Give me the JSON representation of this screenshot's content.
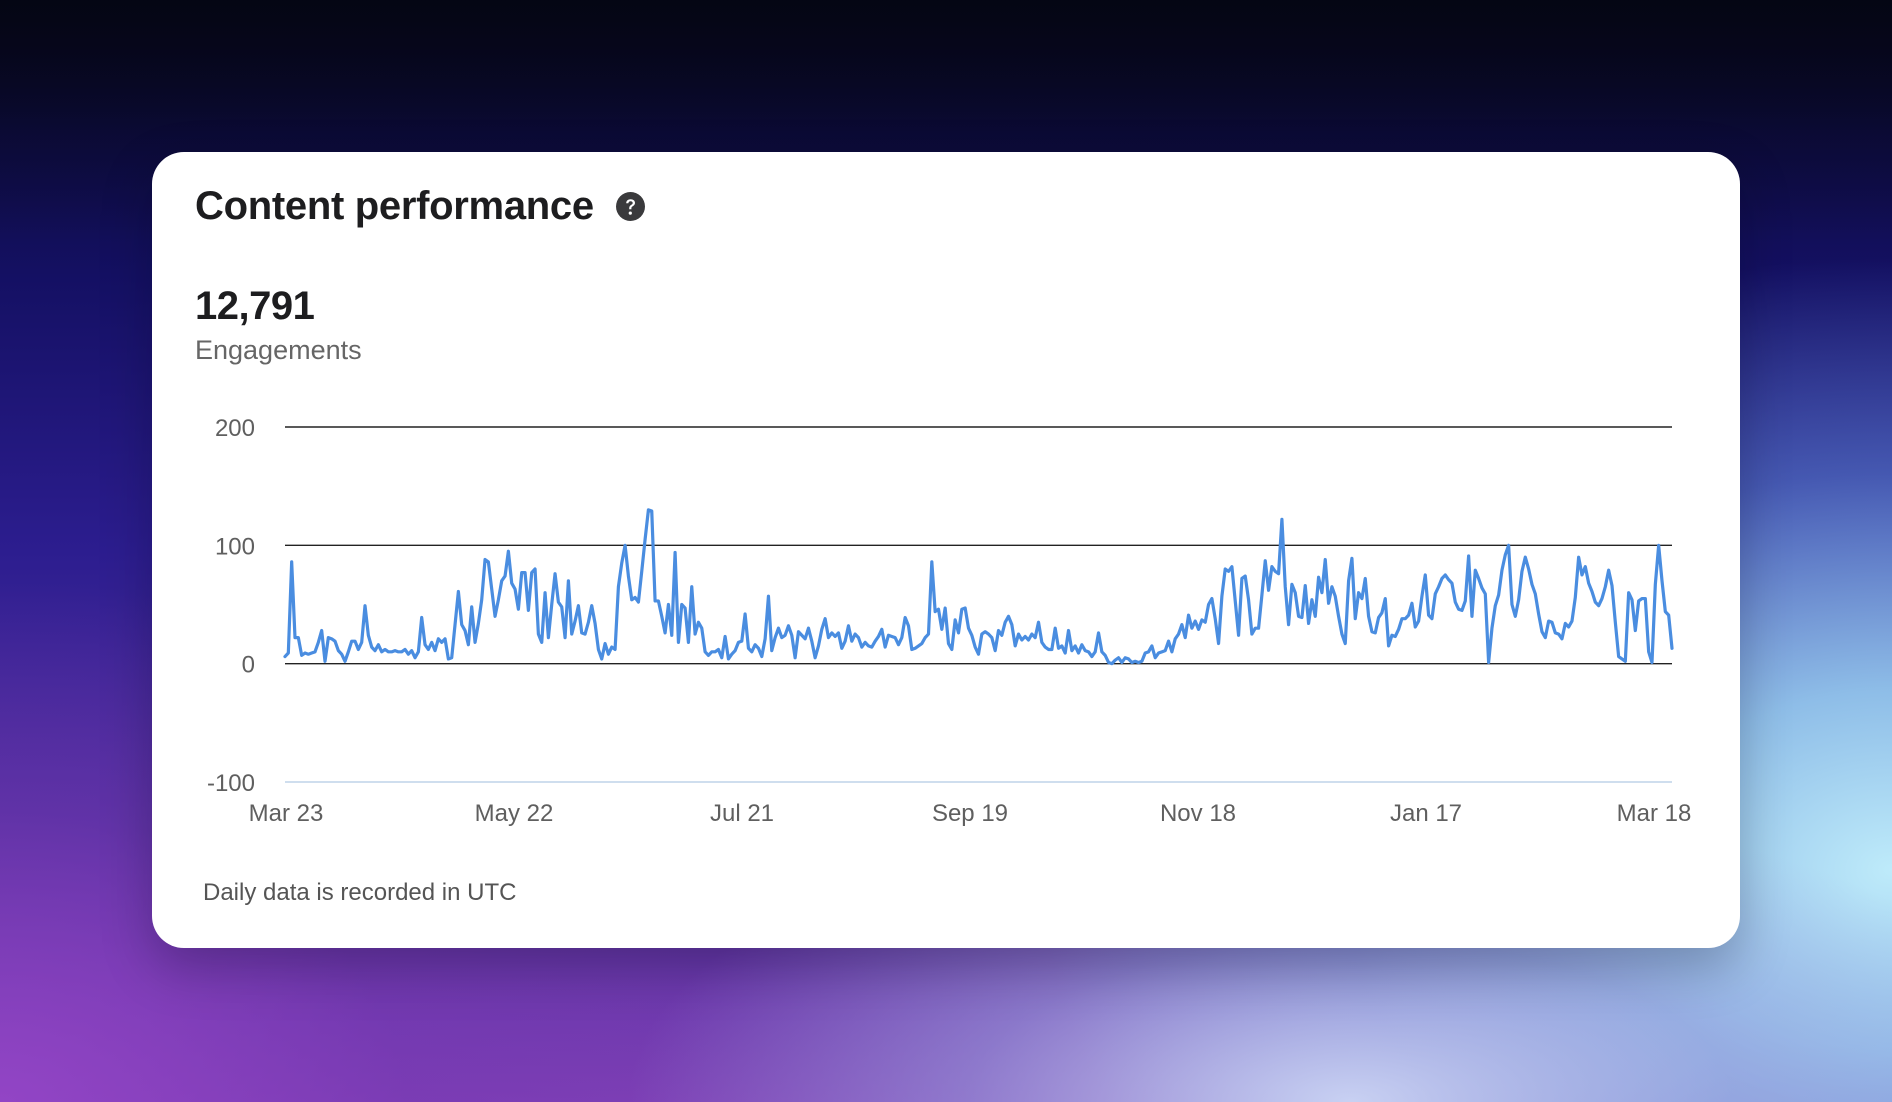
{
  "card": {
    "title": "Content performance",
    "help_icon": "question-circle-icon",
    "metric_value": "12,791",
    "metric_label": "Engagements",
    "footnote": "Daily data is recorded in UTC"
  },
  "colors": {
    "line": "#4a8de0",
    "grid": "#222222",
    "bottom_grid": "#bfd4e8"
  },
  "chart_data": {
    "type": "line",
    "xlabel": "",
    "ylabel": "",
    "ylim": [
      -100,
      200
    ],
    "yticks": [
      200,
      100,
      0,
      -100
    ],
    "ytick_labels": [
      "200",
      "100",
      "0",
      "-100"
    ],
    "xtick_labels": [
      "Mar 23",
      "May 22",
      "Jul 21",
      "Sep 19",
      "Nov 18",
      "Jan 17",
      "Mar 18"
    ],
    "grid": true,
    "legend": "none",
    "series": [
      {
        "values": [
          6,
          9,
          86,
          22,
          22,
          7,
          9,
          8,
          9,
          10,
          18,
          28,
          2,
          22,
          21,
          19,
          11,
          8,
          2,
          10,
          19,
          19,
          12,
          18,
          49,
          24,
          14,
          11,
          16,
          10,
          12,
          10,
          10,
          11,
          10,
          10,
          12,
          8,
          11,
          5,
          10,
          39,
          16,
          12,
          18,
          11,
          21,
          18,
          21,
          4,
          5,
          33,
          61,
          33,
          28,
          16,
          48,
          18,
          34,
          54,
          88,
          86,
          63,
          40,
          54,
          70,
          74,
          95,
          68,
          63,
          46,
          77,
          77,
          45,
          77,
          80,
          25,
          18,
          60,
          22,
          50,
          76,
          52,
          48,
          22,
          70,
          25,
          36,
          49,
          26,
          25,
          35,
          49,
          34,
          12,
          4,
          17,
          8,
          14,
          12,
          65,
          85,
          100,
          74,
          54,
          56,
          52,
          78,
          105,
          130,
          129,
          53,
          53,
          40,
          26,
          50,
          24,
          94,
          18,
          50,
          47,
          18,
          65,
          25,
          35,
          30,
          10,
          7,
          10,
          10,
          12,
          5,
          23,
          4,
          8,
          11,
          18,
          19,
          42,
          13,
          10,
          16,
          13,
          6,
          21,
          57,
          11,
          22,
          30,
          22,
          24,
          32,
          24,
          5,
          27,
          24,
          21,
          30,
          19,
          5,
          15,
          29,
          38,
          22,
          26,
          23,
          26,
          13,
          19,
          32,
          19,
          25,
          22,
          14,
          18,
          15,
          14,
          19,
          23,
          29,
          14,
          24,
          23,
          22,
          16,
          22,
          39,
          32,
          12,
          13,
          15,
          17,
          22,
          25,
          86,
          44,
          46,
          29,
          47,
          17,
          12,
          37,
          26,
          46,
          47,
          30,
          24,
          14,
          8,
          25,
          27,
          25,
          22,
          11,
          28,
          24,
          35,
          40,
          33,
          15,
          25,
          20,
          23,
          20,
          25,
          22,
          35,
          18,
          14,
          12,
          12,
          30,
          13,
          15,
          9,
          28,
          11,
          15,
          9,
          16,
          11,
          10,
          6,
          10,
          26,
          10,
          7,
          1,
          0,
          3,
          5,
          1,
          5,
          4,
          1,
          2,
          1,
          2,
          9,
          10,
          15,
          5,
          9,
          10,
          11,
          19,
          10,
          21,
          25,
          33,
          22,
          41,
          30,
          36,
          29,
          37,
          35,
          50,
          55,
          38,
          17,
          57,
          80,
          78,
          82,
          53,
          24,
          72,
          74,
          54,
          25,
          30,
          30,
          58,
          87,
          62,
          82,
          78,
          76,
          122,
          65,
          33,
          67,
          60,
          40,
          39,
          66,
          34,
          54,
          40,
          73,
          60,
          88,
          51,
          65,
          57,
          40,
          25,
          17,
          70,
          89,
          38,
          60,
          55,
          72,
          40,
          27,
          26,
          39,
          43,
          55,
          15,
          24,
          23,
          29,
          38,
          38,
          41,
          51,
          31,
          36,
          57,
          75,
          41,
          38,
          59,
          65,
          72,
          75,
          71,
          68,
          52,
          46,
          45,
          53,
          91,
          40,
          79,
          72,
          64,
          59,
          1,
          30,
          49,
          58,
          79,
          92,
          100,
          50,
          40,
          54,
          78,
          90,
          80,
          67,
          59,
          42,
          27,
          22,
          36,
          35,
          26,
          25,
          21,
          34,
          31,
          36,
          56,
          90,
          75,
          82,
          68,
          61,
          52,
          49,
          55,
          65,
          79,
          66,
          35,
          6,
          4,
          2,
          60,
          54,
          28,
          53,
          55,
          55,
          10,
          1,
          67,
          100,
          70,
          44,
          41,
          13
        ]
      }
    ]
  }
}
